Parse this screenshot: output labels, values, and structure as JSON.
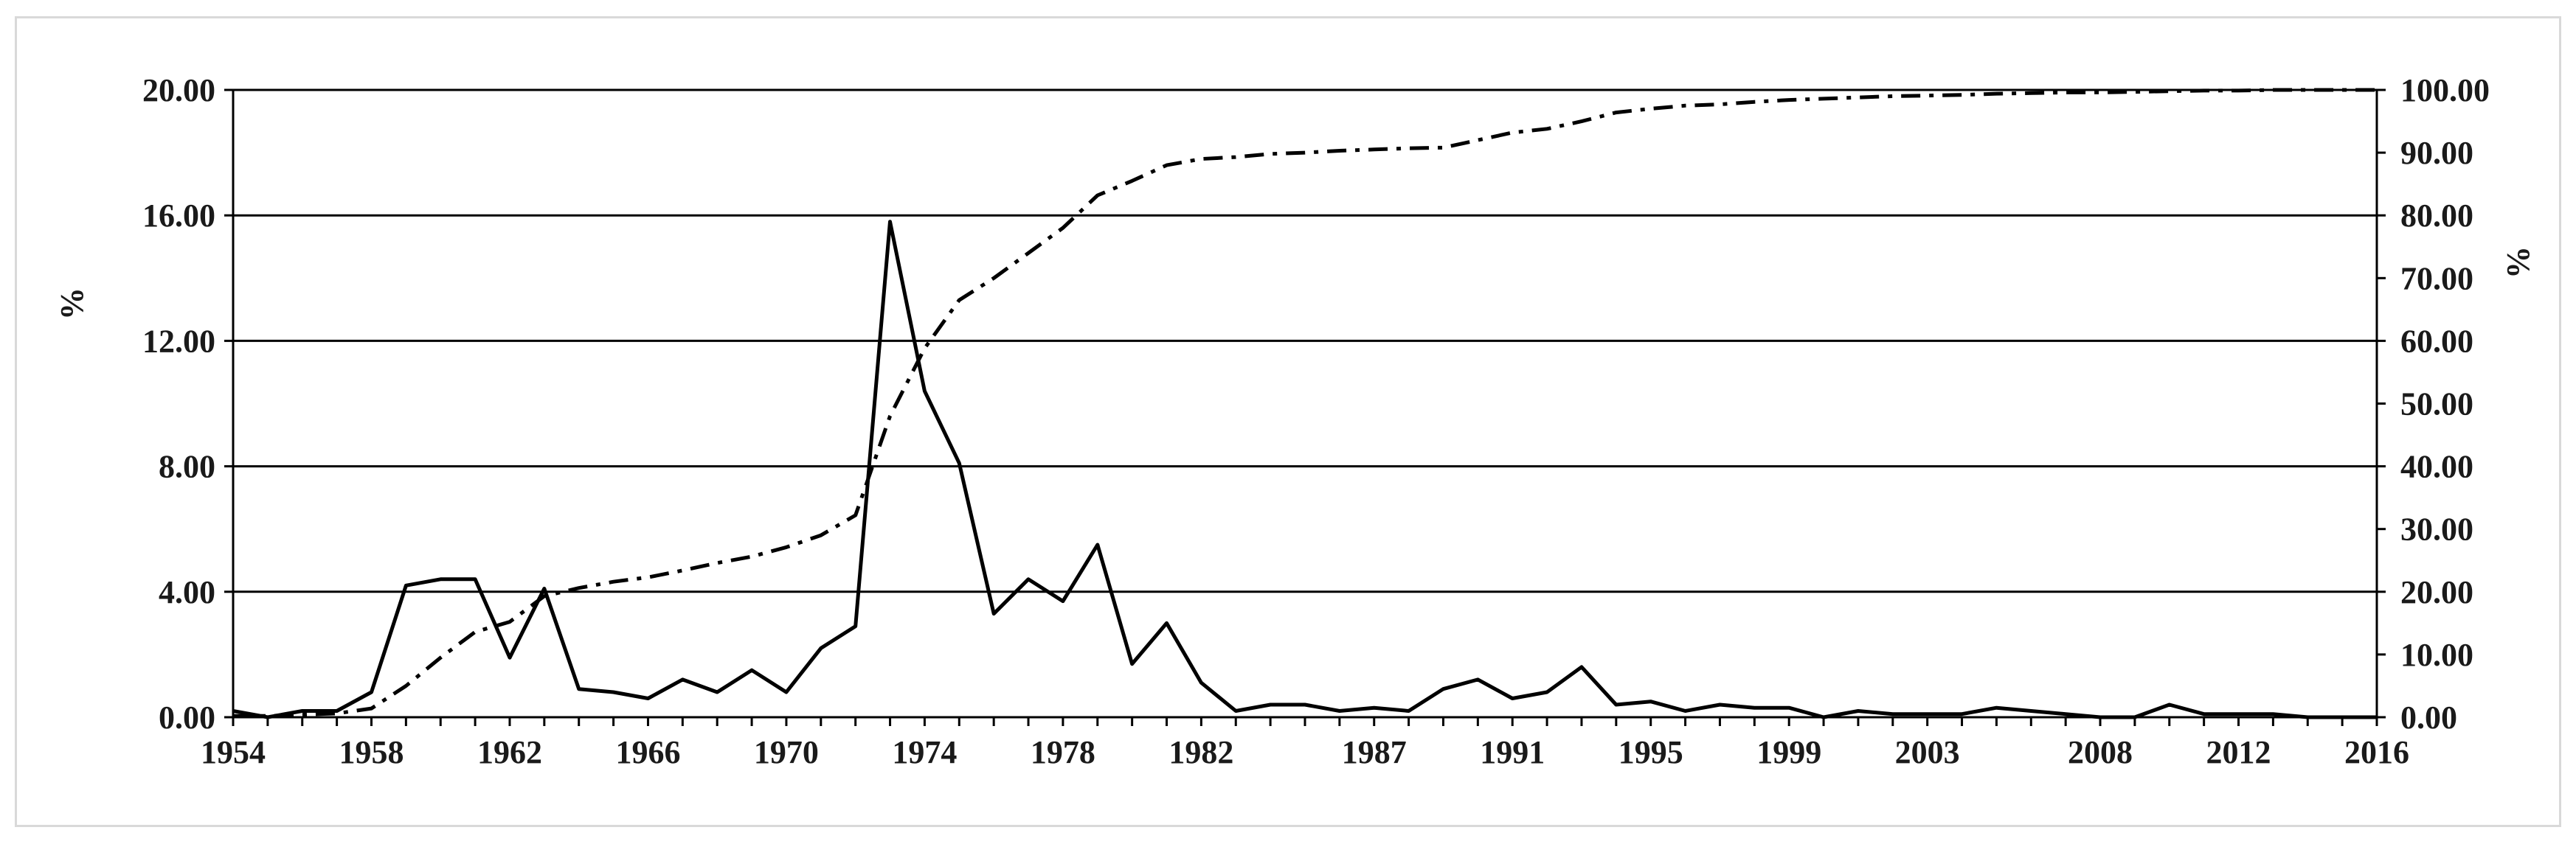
{
  "chart_data": {
    "type": "line",
    "title": "",
    "xlabel": "",
    "ylabel_left": "%",
    "ylabel_right": "%",
    "xlim": [
      1954,
      2016
    ],
    "ylim_left": [
      0,
      20
    ],
    "ylim_right": [
      0,
      100
    ],
    "grid": "horizontal",
    "x_ticks": [
      1954,
      1958,
      1962,
      1966,
      1970,
      1974,
      1978,
      1982,
      1987,
      1991,
      1995,
      1999,
      2003,
      2008,
      2012,
      2016
    ],
    "y_ticks_left": [
      "0.00",
      "4.00",
      "8.00",
      "12.00",
      "16.00",
      "20.00"
    ],
    "y_ticks_right": [
      "0.00",
      "10.00",
      "20.00",
      "30.00",
      "40.00",
      "50.00",
      "60.00",
      "70.00",
      "80.00",
      "90.00",
      "100.00"
    ],
    "series": [
      {
        "axis": "left",
        "style": "solid",
        "color": "#000000",
        "x": [
          1954,
          1955,
          1956,
          1957,
          1958,
          1959,
          1960,
          1961,
          1962,
          1963,
          1964,
          1965,
          1966,
          1967,
          1968,
          1969,
          1970,
          1971,
          1972,
          1973,
          1974,
          1975,
          1976,
          1977,
          1978,
          1979,
          1980,
          1981,
          1982,
          1983,
          1984,
          1985,
          1986,
          1987,
          1988,
          1989,
          1990,
          1991,
          1992,
          1993,
          1994,
          1995,
          1996,
          1997,
          1998,
          1999,
          2000,
          2001,
          2002,
          2003,
          2004,
          2005,
          2006,
          2007,
          2008,
          2009,
          2010,
          2011,
          2012,
          2013,
          2014,
          2015,
          2016
        ],
        "y": [
          0.2,
          0.0,
          0.2,
          0.2,
          0.8,
          4.2,
          4.4,
          4.4,
          1.9,
          4.1,
          0.9,
          0.8,
          0.6,
          1.2,
          0.8,
          1.5,
          0.8,
          2.2,
          2.9,
          15.8,
          10.4,
          8.1,
          3.3,
          4.4,
          3.7,
          5.5,
          1.7,
          3.0,
          1.1,
          0.2,
          0.4,
          0.4,
          0.2,
          0.3,
          0.2,
          0.9,
          1.2,
          0.6,
          0.8,
          1.6,
          0.4,
          0.5,
          0.2,
          0.4,
          0.3,
          0.3,
          0.0,
          0.2,
          0.1,
          0.1,
          0.1,
          0.3,
          0.2,
          0.1,
          0.0,
          0.0,
          0.4,
          0.1,
          0.1,
          0.1,
          0.0,
          0.0,
          0.0
        ]
      },
      {
        "axis": "right",
        "style": "dash-dot",
        "color": "#000000",
        "x": [
          1954,
          1955,
          1956,
          1957,
          1958,
          1959,
          1960,
          1961,
          1962,
          1963,
          1964,
          1965,
          1966,
          1967,
          1968,
          1969,
          1970,
          1971,
          1972,
          1973,
          1974,
          1975,
          1976,
          1977,
          1978,
          1979,
          1980,
          1981,
          1982,
          1983,
          1984,
          1985,
          1986,
          1987,
          1988,
          1989,
          1990,
          1991,
          1992,
          1993,
          1994,
          1995,
          1996,
          1997,
          1998,
          1999,
          2000,
          2001,
          2002,
          2003,
          2004,
          2005,
          2006,
          2007,
          2008,
          2009,
          2010,
          2011,
          2012,
          2013,
          2014,
          2015,
          2016
        ],
        "y": [
          0.2,
          0.2,
          0.4,
          0.6,
          1.4,
          5.0,
          9.5,
          13.6,
          15.2,
          19.3,
          20.6,
          21.6,
          22.3,
          23.4,
          24.6,
          25.6,
          27.1,
          29.0,
          32.2,
          48.0,
          58.8,
          66.5,
          70.0,
          74.0,
          78.0,
          83.2,
          85.5,
          88.0,
          89.0,
          89.3,
          89.8,
          90.0,
          90.3,
          90.5,
          90.7,
          90.8,
          92.0,
          93.2,
          93.8,
          95.0,
          96.4,
          97.0,
          97.5,
          97.7,
          98.1,
          98.4,
          98.6,
          98.8,
          99.0,
          99.1,
          99.2,
          99.4,
          99.5,
          99.6,
          99.6,
          99.7,
          99.8,
          99.9,
          99.9,
          100.0,
          100.0,
          100.0,
          100.0
        ]
      }
    ]
  }
}
